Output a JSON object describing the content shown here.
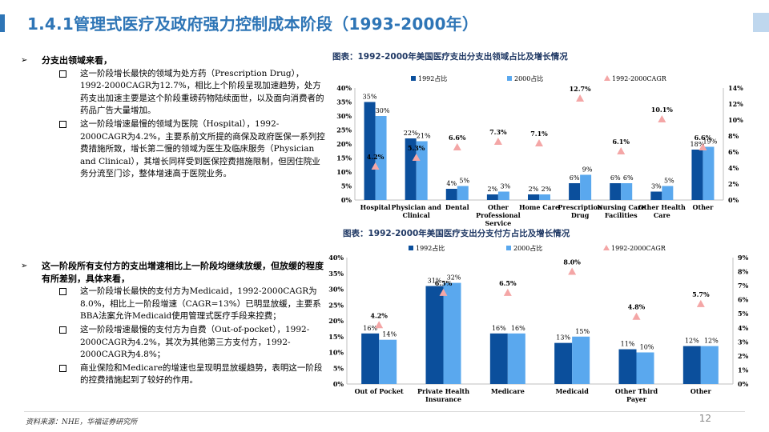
{
  "page": {
    "title": "1.4.1管理式医疗及政府强力控制成本阶段（1993-2000年）",
    "footer_source": "资料来源：NHE，华福证券研究所",
    "page_number": "12",
    "accent_color": "#2e75b6"
  },
  "section1": {
    "heading": "分支出领域来看，",
    "points": [
      "这一阶段增长最快的领域为处方药（Prescription Drug），1992-2000CAGR为12.7%，相比上个阶段呈现加速趋势，处方药支出加速主要是这个阶段重磅药物陆续面世，以及面向消费者的药品广告大量增加。",
      "这一阶段增速最慢的领域为医院（Hospital），1992-2000CAGR为4.2%，主要系前文所提的商保及政府医保一系列控费措施所致，增长第二慢的领域为医生及临床服务（Physician and Clinical），其增长同样受到医保控费措施限制，但因住院业务分流至门诊，整体增速高于医院业务。"
    ]
  },
  "section2": {
    "heading": "这一阶段所有支付方的支出增速相比上一阶段均继续放缓，但放缓的程度有所差别，具体来看，",
    "points": [
      "这一阶段增长最快的支付方为Medicaid，1992-2000CAGR为8.0%，相比上一阶段增速（CAGR=13%）已明显放缓，主要系BBA法案允许Medicaid使用管理式医疗手段来控费；",
      "这一阶段增速最慢的支付方为自费（Out-of-pocket），1992-2000CAGR为4.2%，其次为其他第三方支付方，1992-2000CAGR为4.8%；",
      "商业保险和Medicare的增速也呈现明显放缓趋势，表明这一阶段的控费措施起到了较好的作用。"
    ]
  },
  "chart_data": [
    {
      "type": "bar",
      "title": "图表：1992-2000年美国医疗支出分支出领域占比及增长情况",
      "categories": [
        "Hospital",
        "Physician and Clinical",
        "Dental",
        "Other Professional Service",
        "Home Care",
        "Prescription Drug",
        "Nursing Care Facilities",
        "Other Health Care",
        "Other"
      ],
      "series": [
        {
          "name": "1992占比",
          "values": [
            35,
            22,
            4,
            2,
            2,
            6,
            6,
            3,
            18
          ],
          "labels": [
            "35%",
            "22%",
            "4%",
            "2%",
            "2%",
            "6%",
            "6%",
            "3%",
            "18%"
          ],
          "color": "#0b4f9c"
        },
        {
          "name": "2000占比",
          "values": [
            30,
            21,
            5,
            3,
            2,
            9,
            6,
            5,
            19
          ],
          "labels": [
            "30%",
            "21%",
            "5%",
            "3%",
            "2%",
            "9%",
            "6%",
            "5%",
            "19%"
          ],
          "color": "#5aa8ee"
        },
        {
          "name": "1992-2000CAGR",
          "axis": "right",
          "marker": "triangle",
          "values": [
            4.2,
            5.3,
            6.6,
            7.3,
            7.1,
            12.7,
            6.1,
            10.1,
            6.6
          ],
          "labels": [
            "4.2%",
            "5.3%",
            "6.6%",
            "7.3%",
            "7.1%",
            "12.7%",
            "6.1%",
            "10.1%",
            "6.6%"
          ],
          "color": "#f4a6a6"
        }
      ],
      "ylim": [
        0,
        40
      ],
      "yticks": [
        "0%",
        "5%",
        "10%",
        "15%",
        "20%",
        "25%",
        "30%",
        "35%",
        "40%"
      ],
      "y2lim": [
        0,
        14
      ],
      "y2ticks": [
        "0%",
        "2%",
        "4%",
        "6%",
        "8%",
        "10%",
        "12%",
        "14%"
      ],
      "legend": "top"
    },
    {
      "type": "bar",
      "title": "图表：1992-2000年美国医疗支出分支付方占比及增长情况",
      "categories": [
        "Out of Pocket",
        "Private Health Insurance",
        "Medicare",
        "Medicaid",
        "Other Third Payer",
        "Other"
      ],
      "series": [
        {
          "name": "1992占比",
          "values": [
            16,
            31,
            16,
            13,
            11,
            12
          ],
          "labels": [
            "16%",
            "31%",
            "16%",
            "13%",
            "11%",
            "12%"
          ],
          "color": "#0b4f9c"
        },
        {
          "name": "2000占比",
          "values": [
            14,
            32,
            16,
            15,
            10,
            12
          ],
          "labels": [
            "14%",
            "32%",
            "16%",
            "15%",
            "10%",
            "12%"
          ],
          "color": "#5aa8ee"
        },
        {
          "name": "1992-2000CAGR",
          "axis": "right",
          "marker": "triangle",
          "values": [
            4.2,
            6.5,
            6.5,
            8.0,
            4.8,
            5.7
          ],
          "labels": [
            "4.2%",
            "6.5%",
            "6.5%",
            "8.0%",
            "4.8%",
            "5.7%"
          ],
          "color": "#f4a6a6"
        }
      ],
      "ylim": [
        0,
        40
      ],
      "yticks": [
        "0%",
        "5%",
        "10%",
        "15%",
        "20%",
        "25%",
        "30%",
        "35%",
        "40%"
      ],
      "y2lim": [
        0,
        9
      ],
      "y2ticks": [
        "0%",
        "1%",
        "2%",
        "3%",
        "4%",
        "5%",
        "6%",
        "7%",
        "8%",
        "9%"
      ],
      "legend": "top"
    }
  ]
}
